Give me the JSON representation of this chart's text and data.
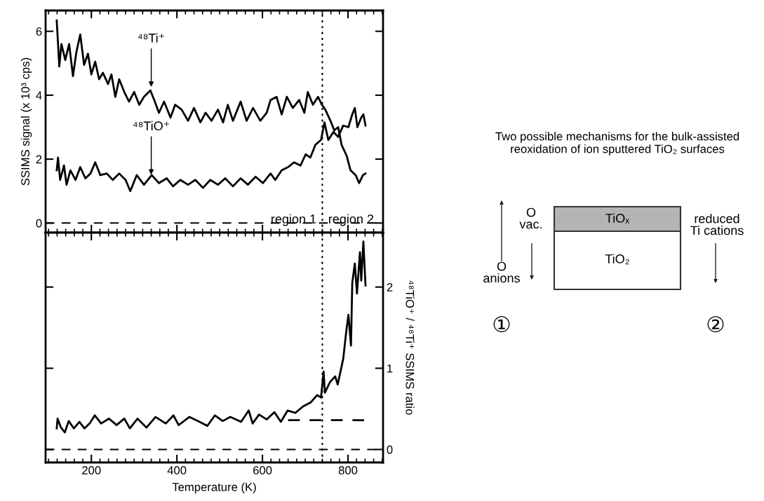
{
  "chart_data": [
    {
      "type": "line",
      "ylabel": "SSIMS signal (x 10³ cps)",
      "xlim": [
        93,
        882
      ],
      "xticks": [
        200,
        400,
        600,
        800
      ],
      "ylim": [
        -0.3,
        6.65
      ],
      "yticks": [
        0,
        2,
        4,
        6
      ],
      "tick_labels": "y",
      "grid": false,
      "marker": "none",
      "line_style": "solid",
      "series": [
        {
          "color": "#000000",
          "x": [
            119,
            125,
            130,
            139,
            148,
            157,
            165,
            174,
            183,
            192,
            200,
            209,
            218,
            227,
            239,
            247,
            256,
            265,
            277,
            288,
            300,
            312,
            323,
            338,
            347,
            358,
            370,
            385,
            396,
            411,
            426,
            440,
            455,
            467,
            481,
            496,
            508,
            519,
            531,
            549,
            563,
            578,
            595,
            610,
            619,
            633,
            645,
            657,
            671,
            686,
            698,
            706,
            718,
            730,
            739,
            747,
            759,
            768,
            777,
            785,
            797,
            806,
            818,
            826,
            835,
            841
          ],
          "values": [
            6.34,
            4.9,
            5.6,
            5.1,
            5.6,
            4.6,
            5.35,
            5.9,
            4.95,
            5.3,
            4.65,
            5.05,
            4.5,
            4.7,
            4.35,
            4.65,
            3.95,
            4.5,
            4.1,
            3.8,
            4.1,
            3.7,
            3.95,
            4.15,
            3.85,
            3.45,
            3.8,
            3.3,
            3.7,
            3.55,
            3.2,
            3.6,
            3.15,
            3.45,
            3.2,
            3.55,
            3.15,
            3.7,
            3.2,
            3.8,
            3.2,
            3.6,
            3.2,
            3.45,
            3.85,
            3.95,
            3.4,
            3.95,
            3.6,
            3.85,
            3.45,
            4.1,
            3.7,
            3.95,
            3.7,
            3.55,
            3.2,
            2.9,
            3.0,
            2.45,
            2.1,
            1.65,
            1.5,
            1.25,
            1.5,
            1.55
          ]
        },
        {
          "color": "#000000",
          "x": [
            119,
            122,
            127,
            136,
            142,
            151,
            163,
            174,
            186,
            198,
            209,
            221,
            236,
            250,
            265,
            280,
            291,
            306,
            323,
            341,
            358,
            376,
            391,
            408,
            426,
            443,
            461,
            478,
            496,
            513,
            531,
            549,
            566,
            584,
            601,
            619,
            630,
            645,
            660,
            674,
            689,
            701,
            712,
            724,
            737,
            745,
            754,
            766,
            777,
            789,
            801,
            810,
            816,
            822,
            831,
            836,
            841
          ],
          "values": [
            1.65,
            2.05,
            1.35,
            1.8,
            1.2,
            1.65,
            1.35,
            1.75,
            1.4,
            1.55,
            1.9,
            1.5,
            1.55,
            1.35,
            1.55,
            1.35,
            1.0,
            1.5,
            1.2,
            1.5,
            1.25,
            1.4,
            1.15,
            1.35,
            1.2,
            1.35,
            1.1,
            1.35,
            1.2,
            1.4,
            1.15,
            1.4,
            1.2,
            1.45,
            1.25,
            1.55,
            1.35,
            1.65,
            1.75,
            1.9,
            1.8,
            2.15,
            2.05,
            2.45,
            2.6,
            3.15,
            2.6,
            2.85,
            2.7,
            3.05,
            3.0,
            3.4,
            3.6,
            3.0,
            3.3,
            3.4,
            3.05
          ]
        }
      ],
      "ref_lines": [
        {
          "axis": "y",
          "value": 0,
          "line_style": "dashed",
          "color": "#000000"
        },
        {
          "axis": "x",
          "value": 740,
          "line_style": "dotted",
          "color": "#000000"
        }
      ],
      "annotations": [
        {
          "text": "⁴⁸Ti⁺",
          "x": 340,
          "y": 4.2
        },
        {
          "text": "⁴⁸TiO⁺",
          "x": 340,
          "y": 1.45
        },
        "region 1",
        "region 2"
      ]
    },
    {
      "type": "line",
      "xlabel": "Temperature (K)",
      "xlim": [
        93,
        882
      ],
      "xticks": [
        200,
        400,
        600,
        800
      ],
      "y2label": "⁴⁸TiO⁺ / ⁴⁸Ti⁺ SSIMS ratio",
      "y2lim": [
        -0.16,
        2.67
      ],
      "y2ticks": [
        0,
        1,
        2
      ],
      "grid": false,
      "marker": "none",
      "line_style": "solid",
      "series": [
        {
          "color": "#000000",
          "axis": "y2",
          "x": [
            119,
            121,
            129,
            138,
            147,
            159,
            172,
            184,
            196,
            208,
            223,
            241,
            259,
            277,
            290,
            308,
            329,
            350,
            374,
            392,
            404,
            429,
            453,
            471,
            489,
            507,
            525,
            550,
            568,
            577,
            592,
            610,
            628,
            643,
            659,
            677,
            695,
            713,
            728,
            737,
            743,
            746,
            758,
            770,
            776,
            789,
            795,
            801,
            807,
            810,
            816,
            821,
            828,
            831,
            836,
            841
          ],
          "values": [
            0.26,
            0.38,
            0.27,
            0.21,
            0.35,
            0.26,
            0.34,
            0.26,
            0.32,
            0.42,
            0.32,
            0.38,
            0.3,
            0.38,
            0.26,
            0.38,
            0.27,
            0.4,
            0.32,
            0.42,
            0.3,
            0.4,
            0.34,
            0.29,
            0.42,
            0.35,
            0.4,
            0.34,
            0.48,
            0.32,
            0.43,
            0.37,
            0.46,
            0.34,
            0.48,
            0.45,
            0.53,
            0.58,
            0.67,
            0.64,
            0.96,
            0.7,
            0.83,
            0.9,
            0.8,
            1.12,
            1.41,
            1.66,
            1.28,
            2.05,
            2.29,
            1.92,
            2.43,
            2.08,
            2.56,
            2.02
          ]
        },
        {
          "type": "line",
          "color": "#000000",
          "axis": "y2",
          "line_style": "dashed",
          "x": [
            660,
            840
          ],
          "values": [
            0.36,
            0.36
          ]
        }
      ],
      "ref_lines": [
        {
          "axis": "y2",
          "value": 0,
          "line_style": "dashed",
          "color": "#000000"
        },
        {
          "axis": "x",
          "value": 740,
          "line_style": "dotted",
          "color": "#000000"
        }
      ]
    },
    {
      "type": "other",
      "title": "Two possible mechanisms for the bulk-assisted reoxidation of ion sputtered TiO₂ surfaces",
      "annotations": [
        "TiOₓ",
        "TiO₂",
        "O\nvac.",
        "O\nanions",
        "reduced\nTi cations",
        "①",
        "②"
      ]
    }
  ]
}
